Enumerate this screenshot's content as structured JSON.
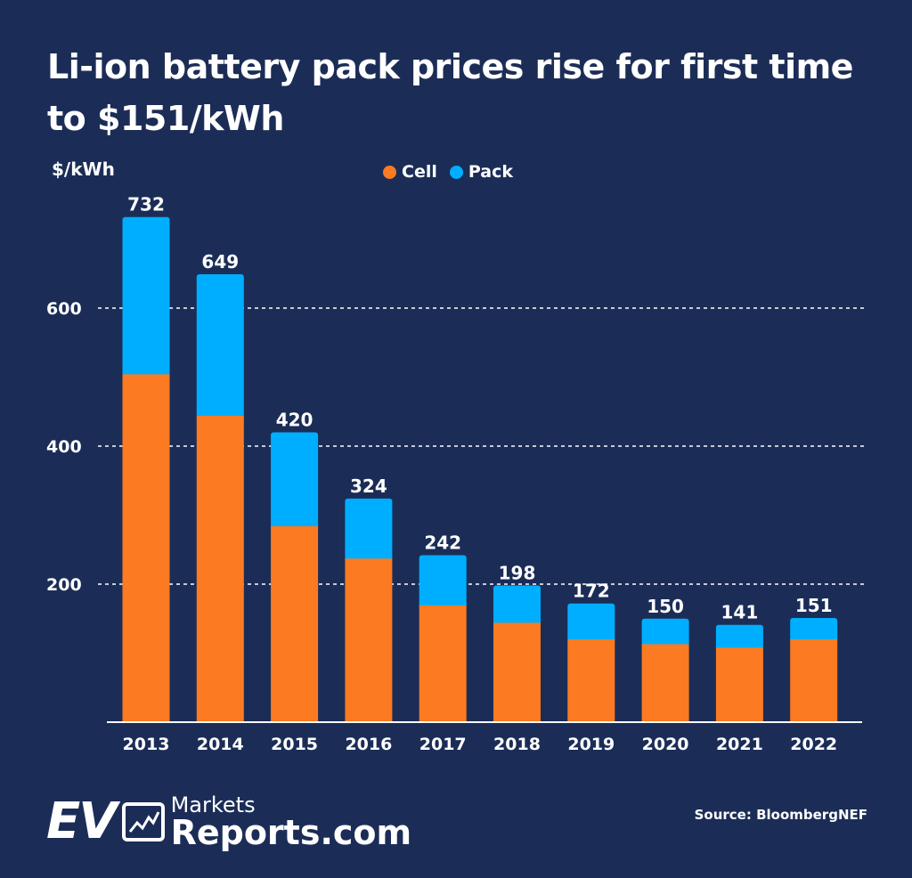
{
  "title": "Li-ion battery pack prices rise for first time to $151/kWh",
  "source": "Source: BloombergNEF",
  "logo": {
    "ev": "EV",
    "markets": "Markets",
    "reports": "Reports.com"
  },
  "colors": {
    "background": "#1b2d57",
    "cell": "#fc7a22",
    "pack": "#00aeff"
  },
  "chart_data": {
    "type": "bar",
    "stacked": true,
    "title": "Li-ion battery pack prices rise for first time to $151/kWh",
    "ylabel": "$/kWh",
    "xlabel": "",
    "ylim": [
      0,
      740
    ],
    "yticks": [
      200,
      400,
      600
    ],
    "grid": "horizontal dashed",
    "legend": "top-center",
    "categories": [
      "2013",
      "2014",
      "2015",
      "2016",
      "2017",
      "2018",
      "2019",
      "2020",
      "2021",
      "2022"
    ],
    "series": [
      {
        "name": "Cell",
        "color": "#fc7a22",
        "values": [
          504,
          444,
          284,
          237,
          169,
          144,
          120,
          113,
          108,
          120
        ]
      },
      {
        "name": "Pack",
        "color": "#00aeff",
        "values": [
          228,
          205,
          136,
          87,
          73,
          54,
          52,
          37,
          33,
          31
        ]
      }
    ],
    "totals": [
      732,
      649,
      420,
      324,
      242,
      198,
      172,
      150,
      141,
      151
    ]
  }
}
